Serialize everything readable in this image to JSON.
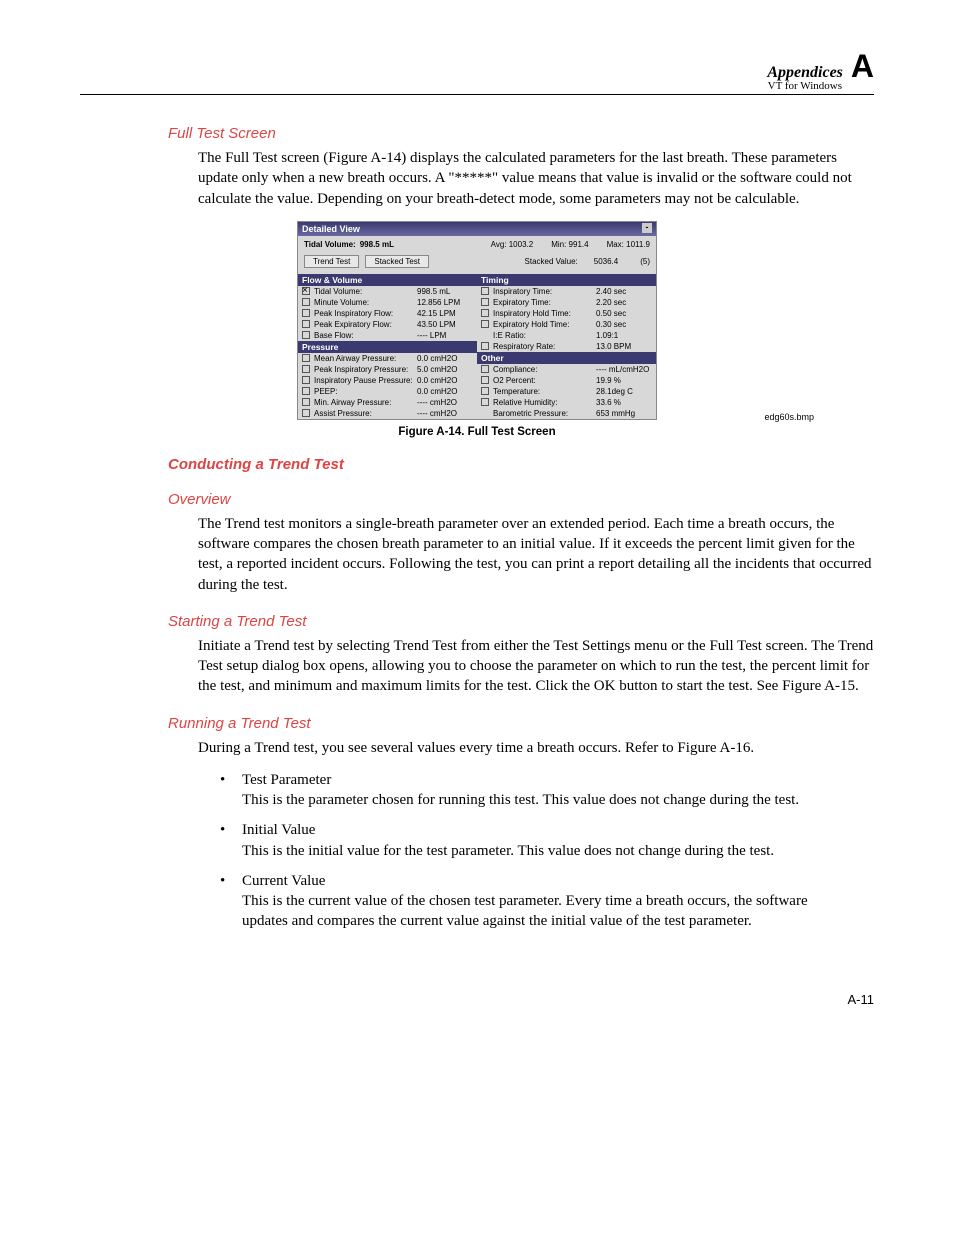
{
  "header": {
    "title": "Appendices",
    "subtitle": "VT for Windows",
    "letter": "A"
  },
  "s1": {
    "title": "Full Test Screen",
    "text": "The Full Test screen (Figure A-14) displays the calculated parameters for the last breath. These parameters update only when a new breath occurs. A \"*****\" value means that value is invalid or the software could not calculate the value. Depending on your breath-detect mode, some parameters may not be calculable."
  },
  "figure": {
    "caption": "Figure A-14. Full Test Screen",
    "side": "edg60s.bmp",
    "dv": {
      "title": "Detailed View",
      "top": {
        "label": "Tidal Volume:",
        "val": "998.5 mL",
        "avg": "Avg: 1003.2",
        "min": "Min: 991.4",
        "max": "Max: 1011.9"
      },
      "btns": {
        "trend": "Trend Test",
        "stacked": "Stacked Test",
        "svlabel": "Stacked Value:",
        "svval": "5036.4",
        "svn": "(5)"
      },
      "left": {
        "sec1": "Flow & Volume",
        "rows1": [
          {
            "chk": "x",
            "n": "Tidal Volume:",
            "v": "998.5 mL"
          },
          {
            "chk": "",
            "n": "Minute Volume:",
            "v": "12.856 LPM"
          },
          {
            "chk": "",
            "n": "Peak Inspiratory Flow:",
            "v": "42.15 LPM"
          },
          {
            "chk": "",
            "n": "Peak Expiratory Flow:",
            "v": "43.50 LPM"
          },
          {
            "chk": "",
            "n": "Base Flow:",
            "v": "---- LPM"
          }
        ],
        "sec2": "Pressure",
        "rows2": [
          {
            "chk": "",
            "n": "Mean Airway Pressure:",
            "v": "0.0 cmH2O"
          },
          {
            "chk": "",
            "n": "Peak Inspiratory Pressure:",
            "v": "5.0 cmH2O"
          },
          {
            "chk": "",
            "n": "Inspiratory Pause Pressure:",
            "v": "0.0 cmH2O"
          },
          {
            "chk": "",
            "n": "PEEP:",
            "v": "0.0 cmH2O"
          },
          {
            "chk": "",
            "n": "Min. Airway Pressure:",
            "v": "---- cmH2O"
          },
          {
            "chk": "",
            "n": "Assist Pressure:",
            "v": "---- cmH2O"
          }
        ]
      },
      "right": {
        "sec1": "Timing",
        "rows1": [
          {
            "chk": "",
            "n": "Inspiratory Time:",
            "v": "2.40 sec"
          },
          {
            "chk": "",
            "n": "Expiratory Time:",
            "v": "2.20 sec"
          },
          {
            "chk": "",
            "n": "Inspiratory Hold Time:",
            "v": "0.50 sec"
          },
          {
            "chk": "",
            "n": "Expiratory Hold Time:",
            "v": "0.30 sec"
          },
          {
            "chk": "none",
            "n": "I:E Ratio:",
            "v": "1.09:1"
          },
          {
            "chk": "",
            "n": "Respiratory Rate:",
            "v": "13.0 BPM"
          }
        ],
        "sec2": "Other",
        "rows2": [
          {
            "chk": "",
            "n": "Compliance:",
            "v": "---- mL/cmH2O"
          },
          {
            "chk": "",
            "n": "O2 Percent:",
            "v": "19.9 %"
          },
          {
            "chk": "",
            "n": "Temperature:",
            "v": "28.1deg C"
          },
          {
            "chk": "",
            "n": "Relative Humidity:",
            "v": "33.6 %"
          },
          {
            "chk": "none",
            "n": "Barometric Pressure:",
            "v": "653 mmHg"
          }
        ]
      }
    }
  },
  "s2": {
    "title": "Conducting a Trend Test"
  },
  "s3": {
    "title": "Overview",
    "text": "The Trend test monitors a single-breath parameter over an extended period. Each time a breath occurs, the software compares the chosen breath parameter to an initial value. If it exceeds the percent limit given for the test, a reported incident occurs. Following the test, you can print a report detailing all the incidents that occurred during the test."
  },
  "s4": {
    "title": "Starting a Trend Test",
    "text": "Initiate a Trend test by selecting Trend Test from either the Test Settings menu or the Full Test screen. The Trend Test setup dialog box opens, allowing you to choose the parameter on which to run the test, the percent limit for the test, and minimum and maximum limits for the test. Click the OK button to start the test. See Figure A-15."
  },
  "s5": {
    "title": "Running a Trend Test",
    "text": "During a Trend test, you see several values every time a breath occurs. Refer to Figure A-16.",
    "items": [
      {
        "h": "Test Parameter",
        "t": "This is the parameter chosen for running this test. This value does not change during the test."
      },
      {
        "h": "Initial Value",
        "t": "This is the initial value for the test parameter. This value does not change during the test."
      },
      {
        "h": "Current Value",
        "t": "This is the current value of the chosen test parameter. Every time a breath occurs, the software updates and compares the current value against the initial value of the test parameter."
      }
    ]
  },
  "footer": {
    "page": "A-11"
  }
}
